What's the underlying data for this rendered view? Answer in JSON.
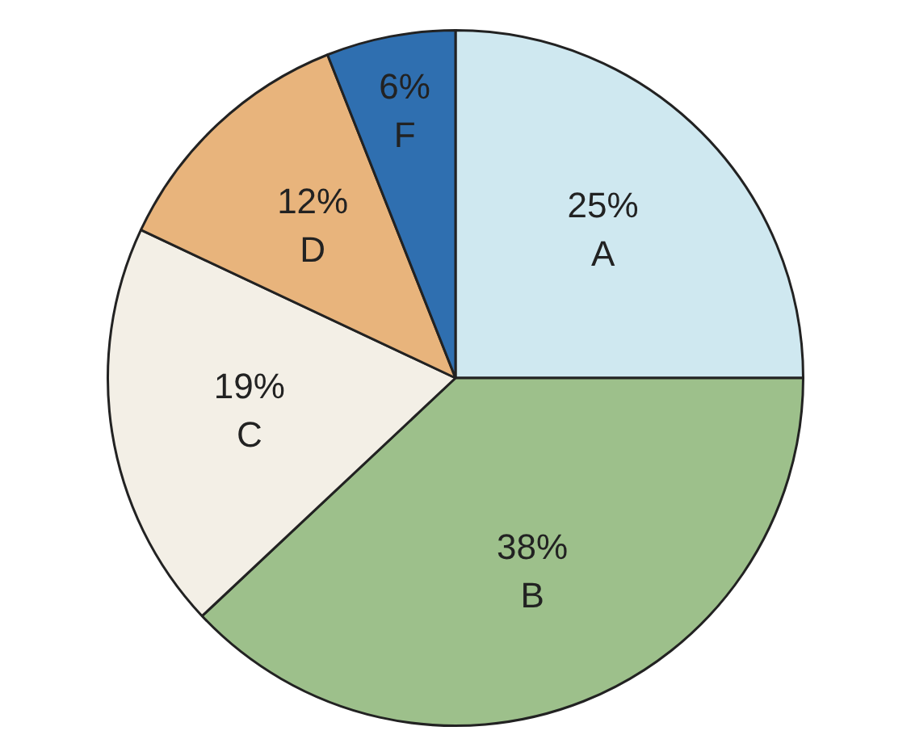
{
  "chart_data": {
    "type": "pie",
    "categories": [
      "A",
      "B",
      "C",
      "D",
      "F"
    ],
    "values": [
      25,
      38,
      19,
      12,
      6
    ],
    "value_labels": [
      "25%",
      "38%",
      "19%",
      "12%",
      "6%"
    ],
    "colors": [
      "#cfe8f0",
      "#9dc08b",
      "#f3efe6",
      "#e8b47c",
      "#2f6fb0"
    ],
    "legend": false
  }
}
